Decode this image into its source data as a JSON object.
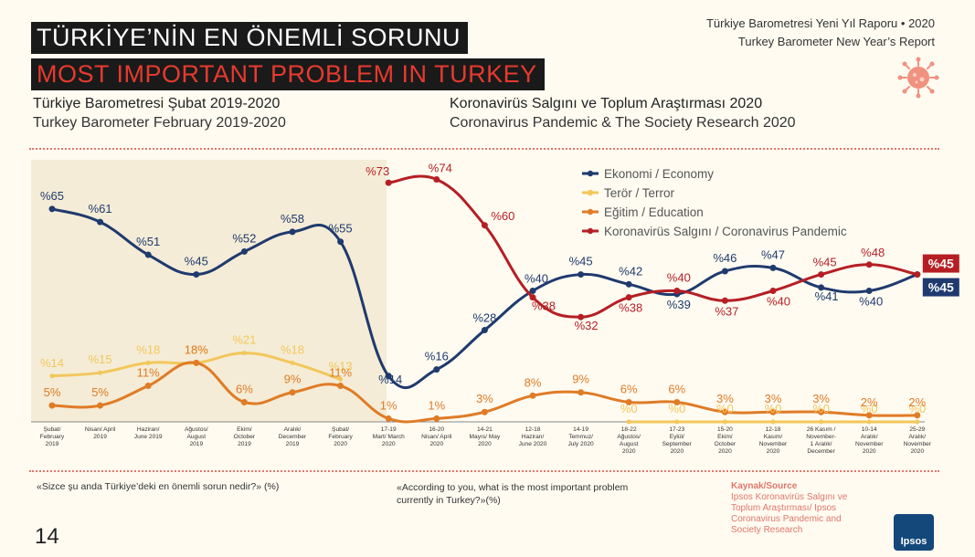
{
  "header": {
    "title_tr": "TÜRKİYE’NİN EN ÖNEMLİ SORUNU",
    "title_en": "MOST IMPORTANT PROBLEM IN TURKEY",
    "report_tr": "Türkiye Barometresi Yeni Yıl Raporu • 2020",
    "report_en": "Turkey Barometer New Year’s Report"
  },
  "subheaders": {
    "left_tr": "Türkiye Barometresi Şubat 2019-2020",
    "left_en": "Turkey Barometer February 2019-2020",
    "right_tr": "Koronavirüs Salgını ve Toplum Araştırması 2020",
    "right_en": "Coronavirus Pandemic & The Society Research 2020"
  },
  "footer": {
    "question_tr": "«Sizce şu anda Türkiye’deki en önemli sorun nedir?» (%)",
    "question_en": "«According to you, what is the most important problem currently in Turkey?»(%)",
    "source_label": "Kaynak/Source",
    "source_text": "Ipsos Koronavirüs Salgını ve Toplum Araştırması/ Ipsos Coronavirus Pandemic and Society Research",
    "page_number": "14",
    "logo_text": "Ipsos"
  },
  "colors": {
    "economy": "#1f3a6e",
    "terror": "#f2c75c",
    "education": "#e07b26",
    "corona": "#b51f24",
    "shade": "#f4ecd6"
  },
  "chart_data": {
    "type": "line",
    "categories": [
      [
        "Şubat/",
        "February",
        "2019"
      ],
      [
        "Nisan/ April",
        "2019"
      ],
      [
        "Haziran/",
        "June 2019"
      ],
      [
        "Ağustos/",
        "August",
        "2019"
      ],
      [
        "Ekim/",
        "October",
        "2019"
      ],
      [
        "Aralık/",
        "December",
        "2019"
      ],
      [
        "Şubat/",
        "February",
        "2020"
      ],
      [
        "17-19",
        "Mart/ March",
        "2020"
      ],
      [
        "16-20",
        "Nisan/ April",
        "2020"
      ],
      [
        "14-21",
        "Mayıs/ May",
        "2020"
      ],
      [
        "12-18",
        "Haziran/",
        "June 2020"
      ],
      [
        "14-19",
        "Temmuz/",
        "July 2020"
      ],
      [
        "18-22",
        "Ağustos/",
        "August",
        "2020"
      ],
      [
        "17-23",
        "Eylül/",
        "September",
        "2020"
      ],
      [
        "15-20",
        "Ekim/",
        "October",
        "2020"
      ],
      [
        "12-18",
        "Kasım/",
        "November",
        "2020"
      ],
      [
        "26 Kasım /",
        "November-",
        "1 Aralık/",
        "December"
      ],
      [
        "10-14",
        "Aralık/",
        "November",
        "2020"
      ],
      [
        "25-29",
        "Aralık/",
        "November",
        "2020"
      ]
    ],
    "series": [
      {
        "name": "Ekonomi / Economy",
        "key": "economy",
        "values": [
          65,
          61,
          51,
          45,
          52,
          58,
          55,
          14,
          16,
          28,
          40,
          45,
          42,
          39,
          46,
          47,
          41,
          40,
          45
        ],
        "labels": [
          "%65",
          "%61",
          "%51",
          "%45",
          "%52",
          "%58",
          "%55",
          "%14",
          "%16",
          "%28",
          "%40",
          "%45",
          "%42",
          "%39",
          "%46",
          "%47",
          "%41",
          "%40",
          "%45"
        ]
      },
      {
        "name": "Terör / Terror",
        "key": "terror",
        "values": [
          14,
          15,
          18,
          18,
          21,
          18,
          13,
          null,
          null,
          null,
          null,
          null,
          0,
          0,
          0,
          0,
          0,
          0,
          0
        ],
        "labels": [
          "%14",
          "%15",
          "%18",
          "18%",
          "%21",
          "%18",
          "%13",
          "",
          "",
          "",
          "",
          "",
          "%0",
          "%0",
          "%0",
          "%0",
          "%0",
          "%0",
          "%0"
        ]
      },
      {
        "name": "Eğitim / Education",
        "key": "education",
        "values": [
          5,
          5,
          11,
          18,
          6,
          9,
          11,
          1,
          1,
          3,
          8,
          9,
          6,
          6,
          3,
          3,
          3,
          2,
          2
        ],
        "labels": [
          "5%",
          "5%",
          "11%",
          "18%",
          "6%",
          "9%",
          "11%",
          "1%",
          "1%",
          "3%",
          "8%",
          "9%",
          "6%",
          "6%",
          "3%",
          "3%",
          "3%",
          "2%",
          "2%"
        ]
      },
      {
        "name": "Koronavirüs Salgını / Coronavirus Pandemic",
        "key": "corona",
        "values": [
          null,
          null,
          null,
          null,
          null,
          null,
          null,
          73,
          74,
          60,
          38,
          32,
          38,
          40,
          37,
          40,
          45,
          48,
          45
        ],
        "labels": [
          "",
          "",
          "",
          "",
          "",
          "",
          "",
          "%73",
          "%74",
          "%60",
          "%38",
          "%32",
          "%38",
          "%40",
          "%37",
          "%40",
          "%45",
          "%48",
          "%45"
        ]
      }
    ],
    "final_labels": {
      "economy": "%45",
      "corona": "%45"
    },
    "ylim": [
      0,
      80
    ],
    "legend_position": "top-right"
  }
}
